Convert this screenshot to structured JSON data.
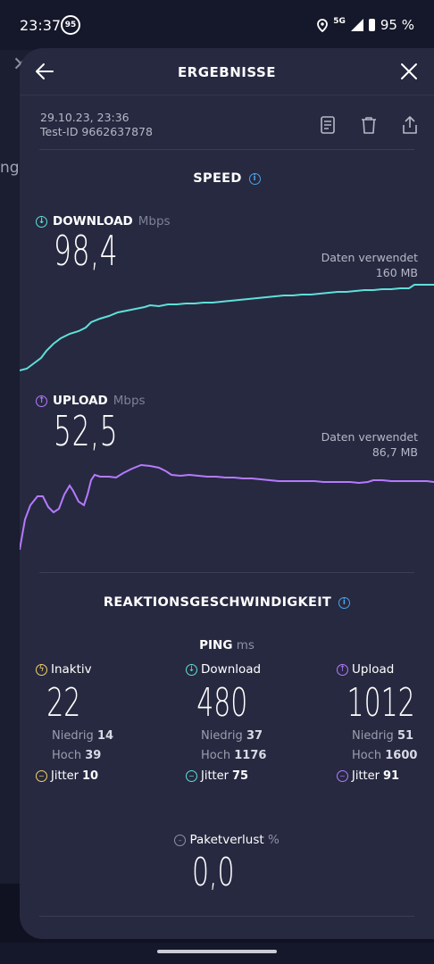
{
  "status": {
    "time": "23:37",
    "badge": "95",
    "network": "5G",
    "battery": "95 %"
  },
  "colors": {
    "download": "#5ee0d8",
    "upload": "#b57aff",
    "idle": "#f3d26b",
    "accent_info": "#4aa3e8"
  },
  "header": {
    "title": "ERGEBNISSE",
    "back_icon": "arrow-left-icon",
    "close_icon": "close-icon"
  },
  "test": {
    "date": "29.10.23, 23:36",
    "test_id": "Test-ID 9662637878"
  },
  "actions": [
    "document-icon",
    "trash-icon",
    "share-icon"
  ],
  "speed": {
    "section_title": "SPEED",
    "download": {
      "label": "DOWNLOAD",
      "unit": "Mbps",
      "value": "98,4",
      "data_used_label": "Daten verwendet",
      "data_used": "160 MB"
    },
    "upload": {
      "label": "UPLOAD",
      "unit": "Mbps",
      "value": "52,5",
      "data_used_label": "Daten verwendet",
      "data_used": "86,7 MB"
    }
  },
  "responsiveness": {
    "section_title": "REAKTIONSGESCHWINDIGKEIT",
    "ping_label": "PING",
    "ping_unit": "ms",
    "idle": {
      "label": "Inaktiv",
      "value": "22",
      "low_label": "Niedrig",
      "low": "14",
      "high_label": "Hoch",
      "high": "39",
      "jitter_label": "Jitter",
      "jitter": "10"
    },
    "download": {
      "label": "Download",
      "value": "480",
      "low_label": "Niedrig",
      "low": "37",
      "high_label": "Hoch",
      "high": "1176",
      "jitter_label": "Jitter",
      "jitter": "75"
    },
    "upload": {
      "label": "Upload",
      "value": "1012",
      "low_label": "Niedrig",
      "low": "51",
      "high_label": "Hoch",
      "high": "1600",
      "jitter_label": "Jitter",
      "jitter": "91"
    },
    "packet_loss": {
      "label": "Paketverlust",
      "unit": "%",
      "value": "0,0"
    }
  },
  "background": {
    "partial_text": "ng"
  }
}
